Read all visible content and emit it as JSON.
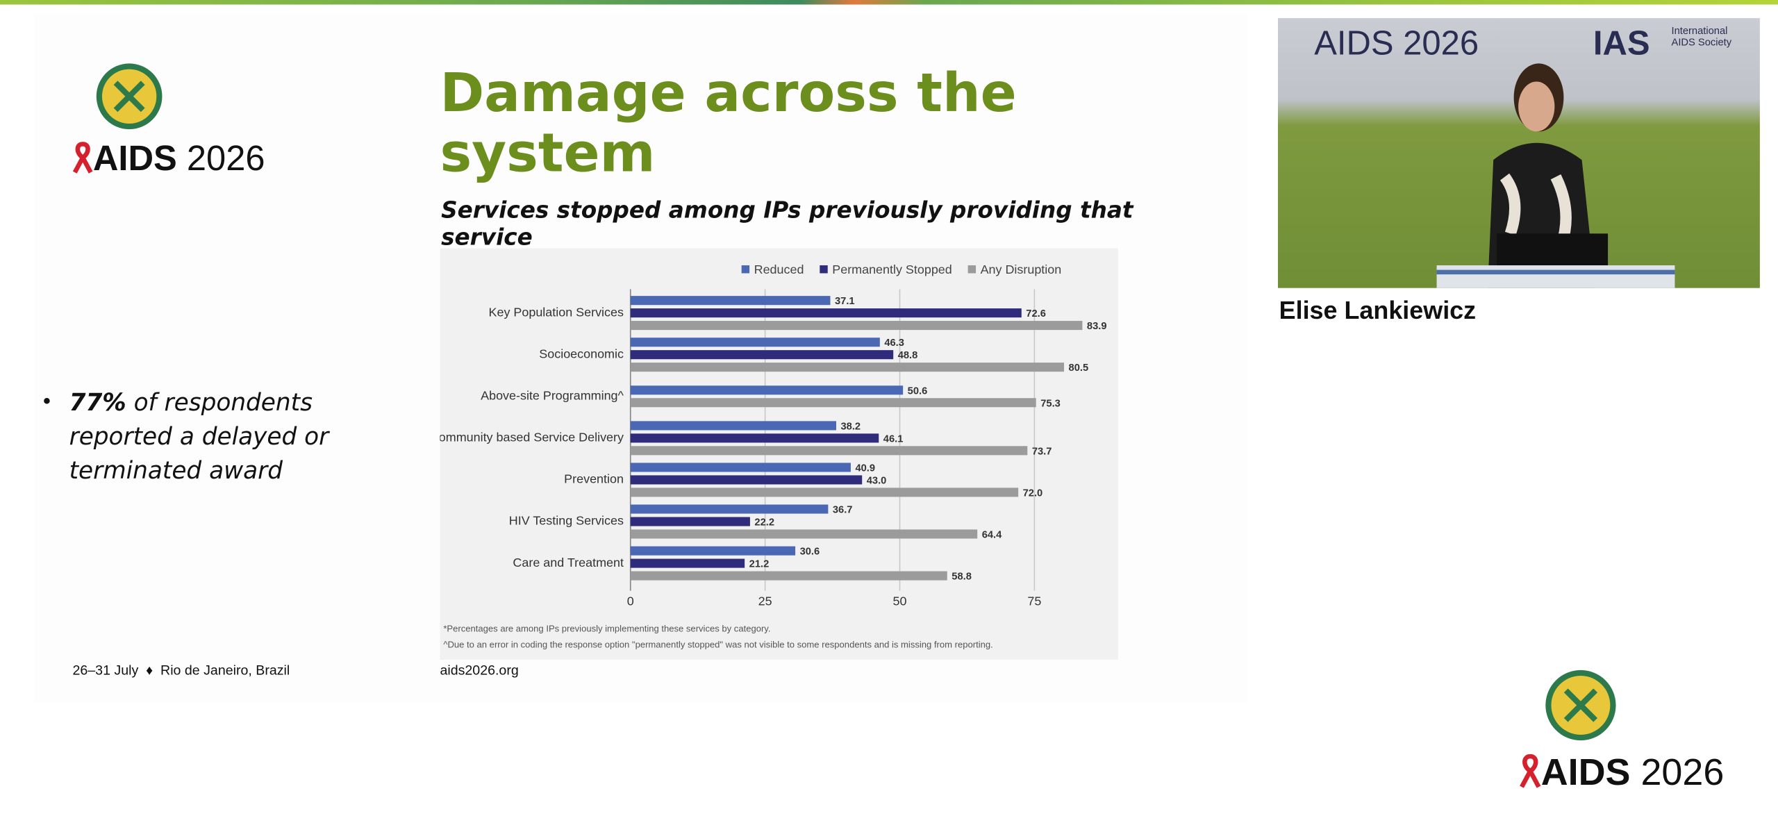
{
  "slide": {
    "logo": {
      "name": "AIDS",
      "year": "2026"
    },
    "title": "Damage across the system",
    "subtitle": "Services stopped among IPs previously providing that service",
    "bullet": {
      "emphasis": "77%",
      "text": "of respondents reported a delayed or terminated award"
    },
    "footer": {
      "dates": "26–31 July",
      "location": "Rio de Janeiro, Brazil",
      "url": "aids2026.org"
    }
  },
  "chart_data": {
    "type": "bar",
    "orientation": "horizontal",
    "categories": [
      "Key Population Services",
      "Socioeconomic",
      "Above-site Programming^",
      "Community based Service Delivery",
      "Prevention",
      "HIV Testing Services",
      "Care and Treatment"
    ],
    "series": [
      {
        "name": "Reduced",
        "color": "#4a68b3",
        "values": [
          37.1,
          46.3,
          50.6,
          38.2,
          40.9,
          36.7,
          30.6
        ],
        "value_labels": [
          "37.1",
          "46.3",
          "50.6",
          "38.2",
          "40.9",
          "36.7",
          "30.6"
        ]
      },
      {
        "name": "Permanently Stopped",
        "color": "#2f2c7c",
        "values": [
          72.6,
          48.8,
          null,
          46.1,
          43.0,
          22.2,
          21.2
        ],
        "value_labels": [
          "72.6",
          "48.8",
          null,
          "46.1",
          "43.0",
          "22.2",
          "21.2"
        ]
      },
      {
        "name": "Any Disruption",
        "color": "#9b9b9b",
        "values": [
          83.9,
          80.5,
          75.3,
          73.7,
          72.0,
          64.4,
          58.8
        ],
        "value_labels": [
          "83.9",
          "80.5",
          "75.3",
          "73.7",
          "72.0",
          "64.4",
          "58.8"
        ]
      }
    ],
    "xlim": [
      0,
      88
    ],
    "xticks": [
      0,
      25,
      50,
      75
    ],
    "grid": true,
    "legend": "top",
    "footnotes": [
      "*Percentages are among IPs previously implementing these services by category.",
      "^Due to an error in coding the response option \"permanently stopped\" was not visible to some respondents and is missing from reporting."
    ]
  },
  "video": {
    "banner": {
      "event": "AIDS 2026",
      "org": "IAS",
      "org_full": "International AIDS Society"
    },
    "speaker": "Elise Lankiewicz"
  }
}
